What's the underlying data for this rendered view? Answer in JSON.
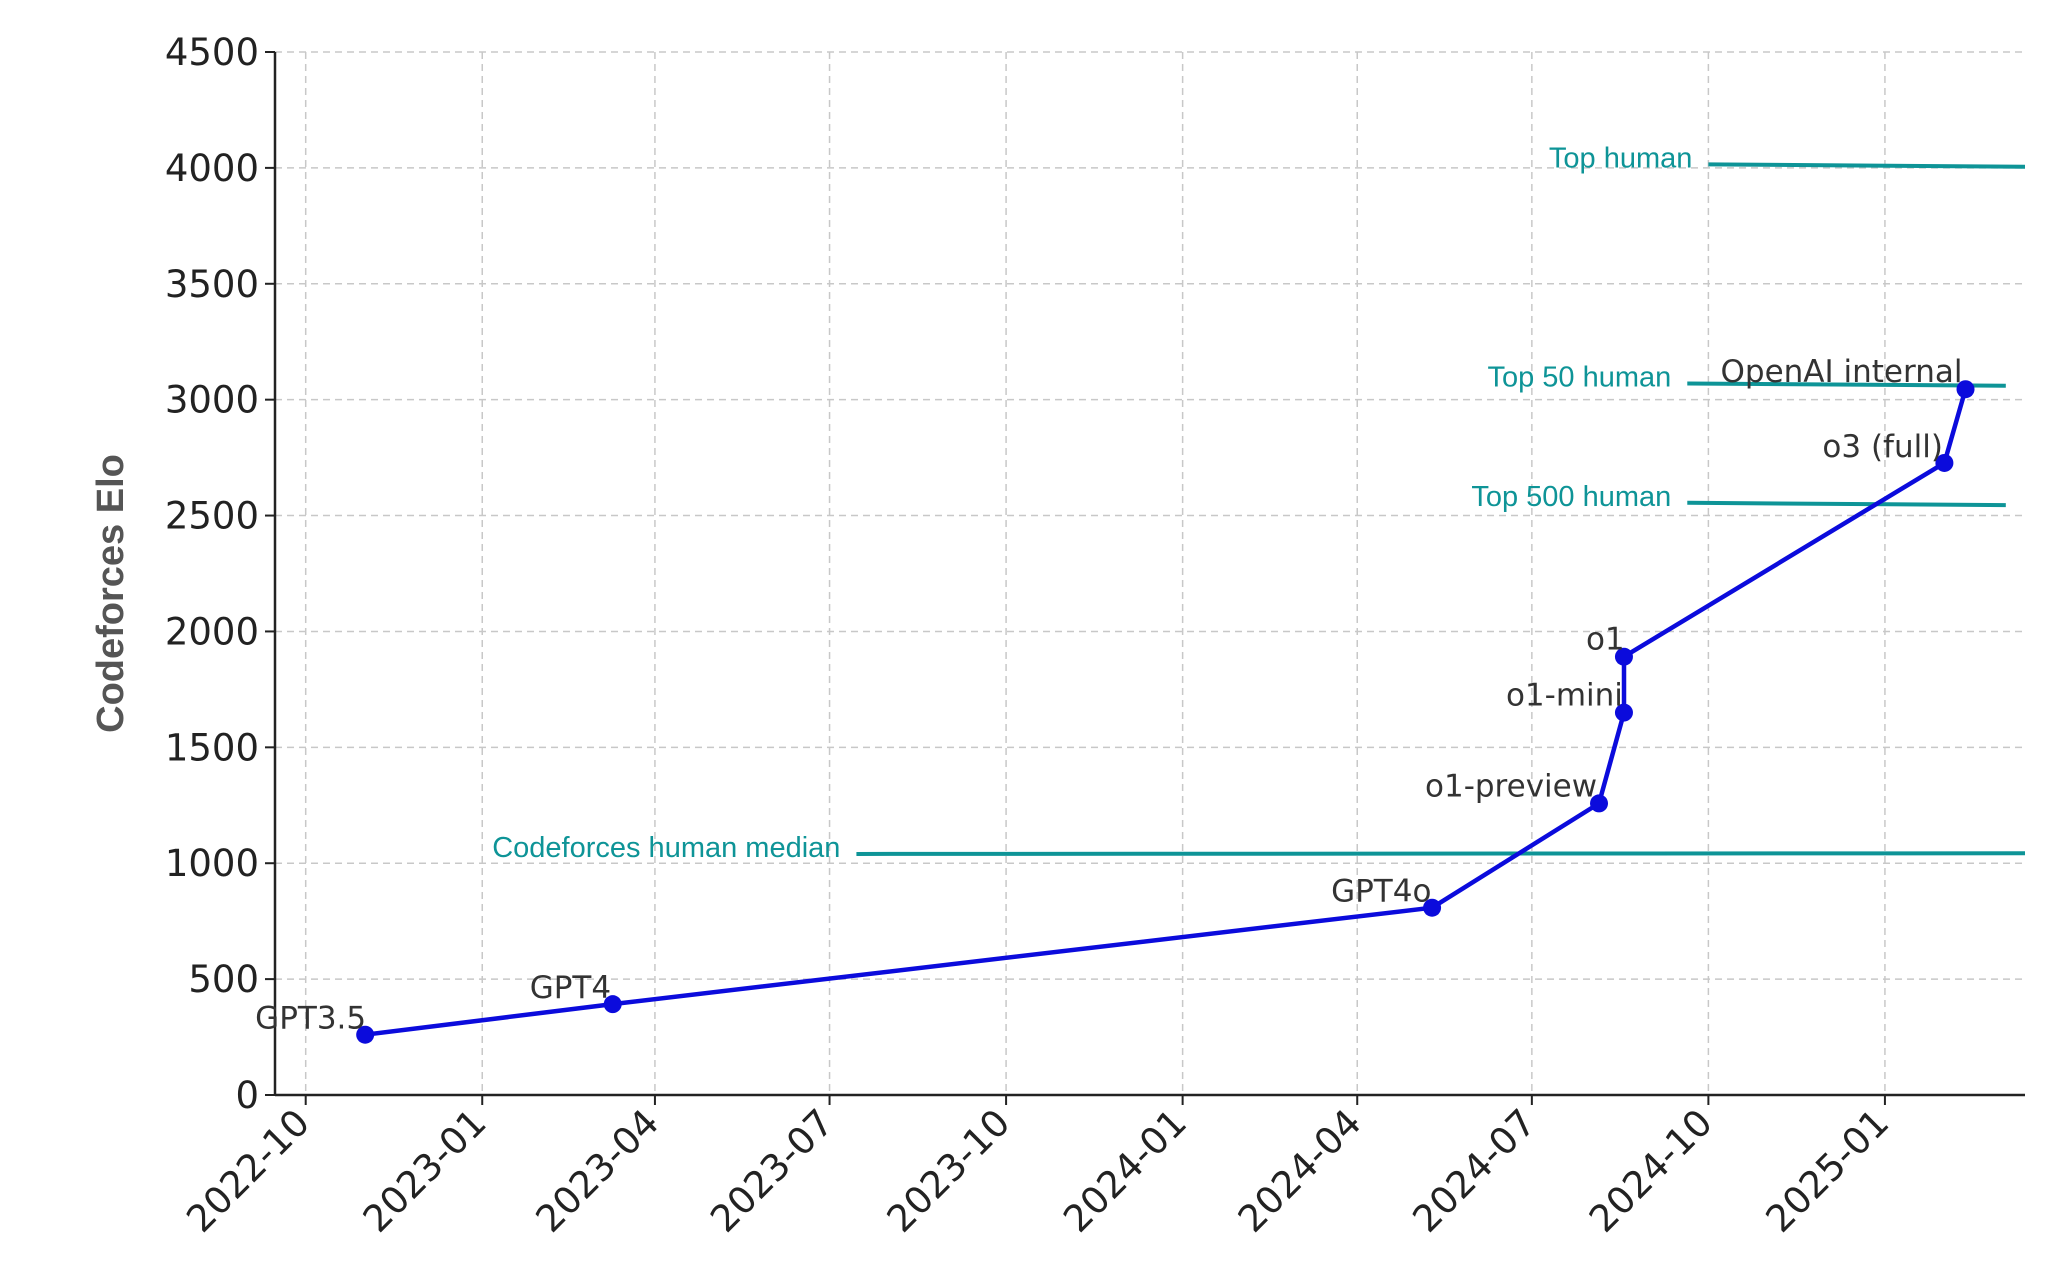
{
  "chart_data": {
    "type": "line",
    "title": "",
    "xlabel": "",
    "ylabel": "Codeforces Elo",
    "ylim": [
      0,
      4500
    ],
    "xlim": [
      "2022-09-15",
      "2025-03-15"
    ],
    "grid": true,
    "y_ticks": [
      0,
      500,
      1000,
      1500,
      2000,
      2500,
      3000,
      3500,
      4000,
      4500
    ],
    "x_ticks": [
      "2022-10",
      "2023-01",
      "2023-04",
      "2023-07",
      "2023-10",
      "2024-01",
      "2024-04",
      "2024-07",
      "2024-10",
      "2025-01"
    ],
    "series": [
      {
        "color": "#0b0bdc",
        "points": [
          {
            "x": "2022-11-01",
            "y": 260,
            "label": "GPT3.5"
          },
          {
            "x": "2023-03-10",
            "y": 392,
            "label": "GPT4"
          },
          {
            "x": "2024-05-10",
            "y": 808,
            "label": "GPT4o"
          },
          {
            "x": "2024-08-05",
            "y": 1258,
            "label": "o1-preview"
          },
          {
            "x": "2024-08-18",
            "y": 1650,
            "label": "o1-mini"
          },
          {
            "x": "2024-08-18",
            "y": 1891,
            "label": "o1"
          },
          {
            "x": "2025-02-01",
            "y": 2727,
            "label": "o3 (full)"
          },
          {
            "x": "2025-02-12",
            "y": 3045,
            "label": "OpenAI internal"
          }
        ]
      }
    ],
    "reference_lines": [
      {
        "label": "Top human",
        "y_start": 4015,
        "y_end": 4005,
        "x_start": "2024-10-01",
        "x_end": "2025-03-15",
        "color": "#0e9497"
      },
      {
        "label": "Top 50 human",
        "y_start": 3070,
        "y_end": 3060,
        "x_start": "2024-09-20",
        "x_end": "2025-03-05",
        "color": "#0e9497"
      },
      {
        "label": "Top 500 human",
        "y_start": 2555,
        "y_end": 2545,
        "x_start": "2024-09-20",
        "x_end": "2025-03-05",
        "color": "#0e9497"
      },
      {
        "label": "Codeforces human median",
        "y_start": 1040,
        "y_end": 1043,
        "x_start": "2023-07-15",
        "x_end": "2025-03-15",
        "color": "#0e9497"
      }
    ]
  }
}
